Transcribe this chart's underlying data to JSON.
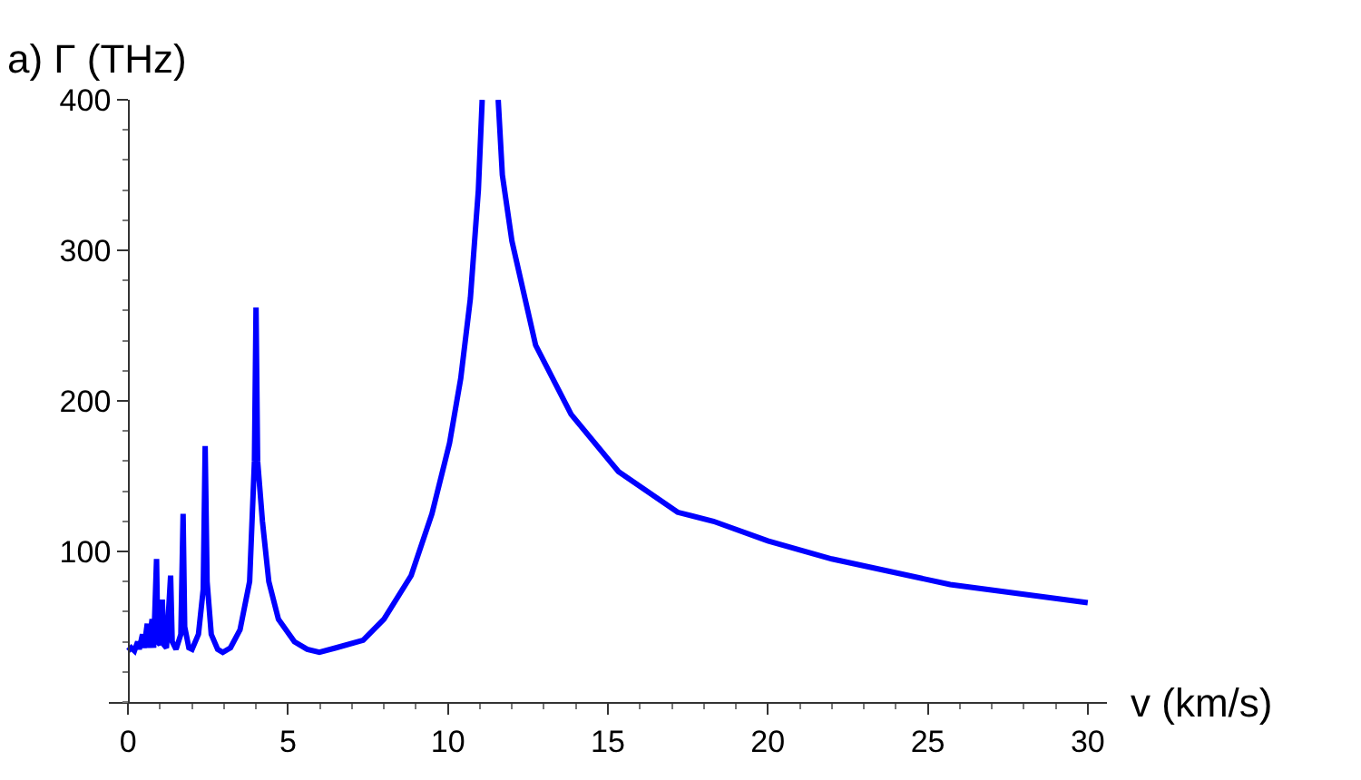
{
  "chart_data": {
    "type": "line",
    "xlabel": "v (km/s)",
    "ylabel": "a) Γ (THz)",
    "x": [
      0,
      0.1,
      0.2,
      0.3,
      0.35,
      0.45,
      0.5,
      0.6,
      0.65,
      0.75,
      0.8,
      0.89,
      0.93,
      1.0,
      1.07,
      1.12,
      1.2,
      1.33,
      1.38,
      1.5,
      1.65,
      1.72,
      1.77,
      1.9,
      2.0,
      2.2,
      2.35,
      2.41,
      2.47,
      2.6,
      2.8,
      2.96,
      3.2,
      3.5,
      3.8,
      3.95,
      4.0,
      4.05,
      4.2,
      4.4,
      4.7,
      5.2,
      5.6,
      5.98,
      6.5,
      7.35,
      8.0,
      8.85,
      9.5,
      10.05,
      10.4,
      10.7,
      10.95,
      11.07,
      11.3,
      11.57,
      11.7,
      12.0,
      12.74,
      13.85,
      15.33,
      17.18,
      18.3,
      20.0,
      22.0,
      25.7,
      30.0
    ],
    "series": [
      {
        "color": "#0000ff",
        "values": [
          34,
          36,
          34,
          40,
          35,
          45,
          36,
          52,
          36,
          55,
          36,
          95,
          40,
          38,
          68,
          38,
          36,
          84,
          40,
          35,
          45,
          125,
          50,
          36,
          35,
          45,
          75,
          170,
          80,
          45,
          35,
          33,
          36,
          48,
          80,
          160,
          262,
          160,
          120,
          80,
          55,
          40,
          35,
          33,
          36,
          41,
          55,
          84,
          125,
          172,
          215,
          268,
          340,
          400,
          null,
          400,
          350,
          306,
          237,
          191,
          153,
          126,
          120,
          107,
          95,
          78,
          66
        ]
      }
    ],
    "xlim": [
      -0.6,
      30.6
    ],
    "ylim": [
      0,
      400
    ],
    "xticks": [
      0,
      5,
      10,
      15,
      20,
      25,
      30
    ],
    "yticks": [
      100,
      200,
      300,
      400
    ],
    "marker": "none",
    "line_style": "solid"
  }
}
